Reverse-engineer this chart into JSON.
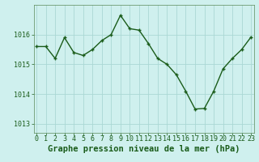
{
  "x": [
    0,
    1,
    2,
    3,
    4,
    5,
    6,
    7,
    8,
    9,
    10,
    11,
    12,
    13,
    14,
    15,
    16,
    17,
    18,
    19,
    20,
    21,
    22,
    23
  ],
  "y": [
    1015.6,
    1015.6,
    1015.2,
    1015.9,
    1015.4,
    1015.3,
    1015.5,
    1015.8,
    1016.0,
    1016.65,
    1016.2,
    1016.15,
    1015.7,
    1015.2,
    1015.0,
    1014.65,
    1014.1,
    1013.5,
    1013.52,
    1014.1,
    1014.85,
    1015.2,
    1015.5,
    1015.92
  ],
  "line_color": "#1a5c1a",
  "marker": "+",
  "marker_size": 3,
  "marker_lw": 1.0,
  "line_width": 1.0,
  "bg_color": "#cff0ee",
  "grid_color": "#aad8d4",
  "xlabel": "Graphe pression niveau de la mer (hPa)",
  "xlabel_fontsize": 7.5,
  "xlabel_color": "#1a5c1a",
  "ytick_labels": [
    "1013",
    "1014",
    "1015",
    "1016"
  ],
  "yticks": [
    1013,
    1014,
    1015,
    1016
  ],
  "xticks": [
    0,
    1,
    2,
    3,
    4,
    5,
    6,
    7,
    8,
    9,
    10,
    11,
    12,
    13,
    14,
    15,
    16,
    17,
    18,
    19,
    20,
    21,
    22,
    23
  ],
  "ylim": [
    1012.7,
    1017.0
  ],
  "xlim": [
    -0.3,
    23.3
  ],
  "tick_fontsize": 6,
  "tick_color": "#1a5c1a",
  "spine_color": "#5a8a5a"
}
